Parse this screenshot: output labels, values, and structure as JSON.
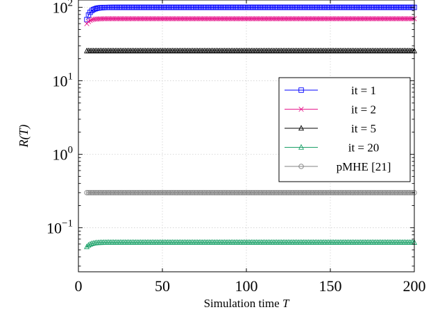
{
  "chart_data": {
    "type": "line",
    "title": "",
    "xlabel": "Simulation time",
    "xlabel_var": "T",
    "ylabel": "R(T)",
    "xlim": [
      0,
      200
    ],
    "ylim_log10": [
      -1.6,
      2.1
    ],
    "yscale": "log",
    "grid": true,
    "legend_position": "center-right",
    "x_ticks": [
      {
        "value": 0,
        "label": "0"
      },
      {
        "value": 50,
        "label": "50"
      },
      {
        "value": 100,
        "label": "100"
      },
      {
        "value": 150,
        "label": "150"
      },
      {
        "value": 200,
        "label": "200"
      }
    ],
    "y_ticks": [
      {
        "exp": -1,
        "base": "10",
        "power": "−1"
      },
      {
        "exp": 0,
        "base": "10",
        "power": "0"
      },
      {
        "exp": 1,
        "base": "10",
        "power": "1"
      },
      {
        "exp": 2,
        "base": "10",
        "power": "2"
      }
    ],
    "x_start": 5,
    "x_end": 200,
    "series": [
      {
        "name": "it = 1",
        "color": "#0000ff",
        "marker": "square",
        "start_value": 68,
        "final_value": 100,
        "tau": 2.5
      },
      {
        "name": "it = 2",
        "color": "#e6198c",
        "marker": "cross",
        "start_value": 60,
        "final_value": 70,
        "tau": 2.0
      },
      {
        "name": "it = 5",
        "color": "#000000",
        "marker": "triangle",
        "start_value": 25.5,
        "final_value": 25.5,
        "tau": 1.0
      },
      {
        "name": "it = 20",
        "color": "#19a067",
        "marker": "triangle",
        "start_value": 0.055,
        "final_value": 0.063,
        "tau": 2.5
      },
      {
        "name": "pMHE [21]",
        "color": "#808080",
        "marker": "circle",
        "start_value": 0.3,
        "final_value": 0.3,
        "tau": 1.0
      }
    ]
  }
}
